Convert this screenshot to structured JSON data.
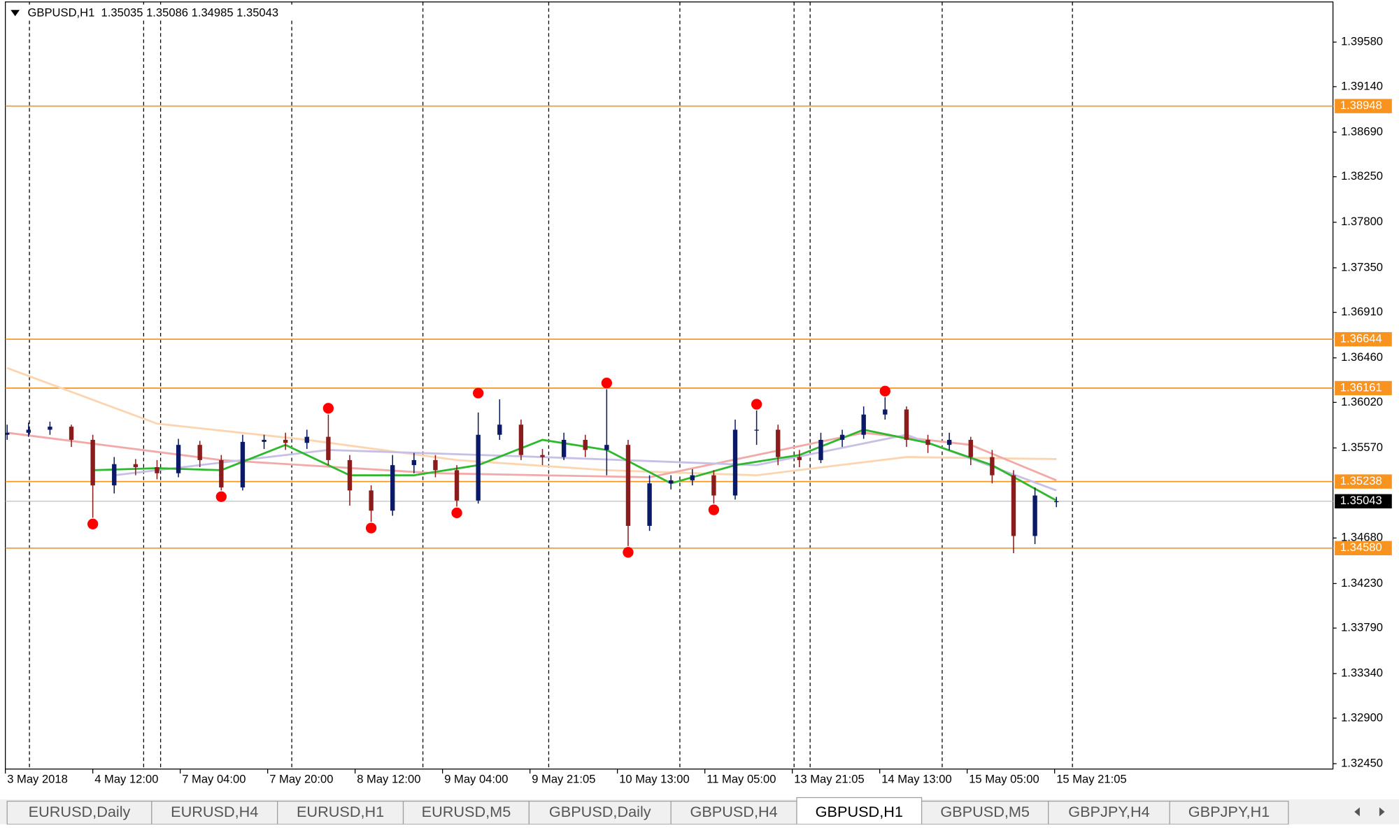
{
  "header": {
    "title": "GBPUSD,H1  1.35035 1.35086 1.34985 1.35043"
  },
  "chart_data": {
    "type": "candlestick",
    "ylim": [
      1.32397,
      1.39977
    ],
    "yticks": [
      {
        "value": 1.3958,
        "label": "1.39580"
      },
      {
        "value": 1.3914,
        "label": "1.39140"
      },
      {
        "value": 1.3869,
        "label": "1.38690"
      },
      {
        "value": 1.3825,
        "label": "1.38250"
      },
      {
        "value": 1.378,
        "label": "1.37800"
      },
      {
        "value": 1.3735,
        "label": "1.37350"
      },
      {
        "value": 1.3691,
        "label": "1.36910"
      },
      {
        "value": 1.3646,
        "label": "1.36460"
      },
      {
        "value": 1.3602,
        "label": "1.36020"
      },
      {
        "value": 1.3557,
        "label": "1.35570"
      },
      {
        "value": 1.3468,
        "label": "1.34680"
      },
      {
        "value": 1.3423,
        "label": "1.34230"
      },
      {
        "value": 1.3379,
        "label": "1.33790"
      },
      {
        "value": 1.3334,
        "label": "1.33340"
      },
      {
        "value": 1.329,
        "label": "1.32900"
      },
      {
        "value": 1.3245,
        "label": "1.32450"
      }
    ],
    "time_labels": [
      "3 May 2018",
      "4 May 12:00",
      "7 May 04:00",
      "7 May 20:00",
      "8 May 12:00",
      "9 May 04:00",
      "9 May 21:05",
      "10 May 13:00",
      "11 May 05:00",
      "13 May 21:05",
      "14 May 13:00",
      "15 May 05:00",
      "15 May 21:05"
    ],
    "up_color": "#0b1a66",
    "down_color": "#8a1c1c",
    "candles": [
      [
        1.357,
        1.358,
        1.3565,
        1.3572
      ],
      [
        1.3572,
        1.3582,
        1.3568,
        1.3575
      ],
      [
        1.3575,
        1.3583,
        1.357,
        1.3578
      ],
      [
        1.3578,
        1.358,
        1.3558,
        1.3565
      ],
      [
        1.3565,
        1.357,
        1.3488,
        1.352
      ],
      [
        1.352,
        1.3548,
        1.3512,
        1.3541
      ],
      [
        1.3541,
        1.3546,
        1.353,
        1.3538
      ],
      [
        1.3538,
        1.3545,
        1.3526,
        1.3532
      ],
      [
        1.3532,
        1.3566,
        1.3528,
        1.356
      ],
      [
        1.356,
        1.3564,
        1.3538,
        1.3545
      ],
      [
        1.3545,
        1.355,
        1.3515,
        1.3518
      ],
      [
        1.3518,
        1.357,
        1.3515,
        1.3563
      ],
      [
        1.3563,
        1.357,
        1.3556,
        1.3565
      ],
      [
        1.3565,
        1.3572,
        1.3555,
        1.3562
      ],
      [
        1.3562,
        1.3575,
        1.3556,
        1.3568
      ],
      [
        1.3568,
        1.359,
        1.354,
        1.3545
      ],
      [
        1.3545,
        1.355,
        1.35,
        1.3515
      ],
      [
        1.3515,
        1.352,
        1.3484,
        1.3495
      ],
      [
        1.3495,
        1.355,
        1.349,
        1.354
      ],
      [
        1.354,
        1.3552,
        1.3532,
        1.3545
      ],
      [
        1.3545,
        1.355,
        1.3528,
        1.3535
      ],
      [
        1.3535,
        1.354,
        1.3499,
        1.3505
      ],
      [
        1.3505,
        1.3592,
        1.3502,
        1.357
      ],
      [
        1.357,
        1.3605,
        1.3565,
        1.358
      ],
      [
        1.358,
        1.3585,
        1.3545,
        1.355
      ],
      [
        1.355,
        1.3556,
        1.354,
        1.3548
      ],
      [
        1.3548,
        1.3572,
        1.3545,
        1.3565
      ],
      [
        1.3565,
        1.357,
        1.3548,
        1.3555
      ],
      [
        1.3555,
        1.3615,
        1.353,
        1.356
      ],
      [
        1.356,
        1.3565,
        1.346,
        1.348
      ],
      [
        1.348,
        1.353,
        1.3475,
        1.3522
      ],
      [
        1.3522,
        1.353,
        1.3516,
        1.3525
      ],
      [
        1.3525,
        1.3536,
        1.352,
        1.353
      ],
      [
        1.353,
        1.3535,
        1.3502,
        1.351
      ],
      [
        1.351,
        1.3585,
        1.3506,
        1.3575
      ],
      [
        1.3575,
        1.3594,
        1.356,
        1.3575
      ],
      [
        1.3575,
        1.358,
        1.354,
        1.3548
      ],
      [
        1.3548,
        1.3555,
        1.3538,
        1.3545
      ],
      [
        1.3545,
        1.3572,
        1.3542,
        1.3565
      ],
      [
        1.3565,
        1.3575,
        1.3558,
        1.357
      ],
      [
        1.357,
        1.3598,
        1.3566,
        1.359
      ],
      [
        1.359,
        1.3607,
        1.3585,
        1.3595
      ],
      [
        1.3595,
        1.3598,
        1.3558,
        1.3565
      ],
      [
        1.3565,
        1.357,
        1.3552,
        1.356
      ],
      [
        1.356,
        1.3572,
        1.3555,
        1.3565
      ],
      [
        1.3565,
        1.3568,
        1.354,
        1.3548
      ],
      [
        1.3548,
        1.3555,
        1.3522,
        1.353
      ],
      [
        1.353,
        1.3535,
        1.3453,
        1.347
      ],
      [
        1.347,
        1.3518,
        1.3462,
        1.351
      ],
      [
        1.35035,
        1.35086,
        1.34985,
        1.35043
      ]
    ],
    "fractals_up": {
      "color": "#ff0000",
      "bars": [
        15,
        22,
        28,
        35,
        41
      ],
      "prices": [
        1.359,
        1.3605,
        1.3615,
        1.3594,
        1.3607
      ]
    },
    "fractals_down": {
      "color": "#ff0000",
      "bars": [
        4,
        10,
        17,
        21,
        29,
        33
      ],
      "prices": [
        1.3488,
        1.3515,
        1.3484,
        1.3499,
        1.346,
        1.3502
      ]
    },
    "moving_averages": [
      {
        "color": "#fcd5b0",
        "bars": [
          0,
          7,
          14,
          21,
          28,
          35,
          42,
          49
        ],
        "values": [
          1.3636,
          1.3581,
          1.3565,
          1.3545,
          1.3535,
          1.353,
          1.3548,
          1.3546
        ]
      },
      {
        "color": "#f2aaa8",
        "bars": [
          0,
          10,
          20,
          30,
          40,
          45,
          49
        ],
        "values": [
          1.3572,
          1.3545,
          1.3532,
          1.3528,
          1.3572,
          1.356,
          1.3525
        ]
      },
      {
        "color": "#c8bfe6",
        "bars": [
          5,
          15,
          25,
          35,
          42,
          49
        ],
        "values": [
          1.353,
          1.3555,
          1.3548,
          1.354,
          1.357,
          1.3515
        ]
      },
      {
        "color": "#2db82d",
        "bars": [
          4,
          7,
          10,
          13,
          16,
          19,
          22,
          25,
          28,
          31,
          34,
          37,
          40,
          43,
          46,
          49
        ],
        "values": [
          1.3535,
          1.3537,
          1.3535,
          1.356,
          1.353,
          1.353,
          1.354,
          1.3565,
          1.3555,
          1.3522,
          1.354,
          1.355,
          1.3575,
          1.3562,
          1.354,
          1.3505
        ]
      }
    ],
    "levels": {
      "color": "#f7931e",
      "values": [
        1.38948,
        1.36644,
        1.36161,
        1.35238,
        {
          "value": 1.3458,
          "label": "1.34580"
        }
      ]
    },
    "current_price": 1.35043
  },
  "tabs": {
    "items": [
      "EURUSD,Daily",
      "EURUSD,H4",
      "EURUSD,H1",
      "EURUSD,M5",
      "GBPUSD,Daily",
      "GBPUSD,H4",
      "GBPUSD,H1",
      "GBPUSD,M5",
      "GBPJPY,H4",
      "GBPJPY,H1"
    ],
    "active": 6
  }
}
